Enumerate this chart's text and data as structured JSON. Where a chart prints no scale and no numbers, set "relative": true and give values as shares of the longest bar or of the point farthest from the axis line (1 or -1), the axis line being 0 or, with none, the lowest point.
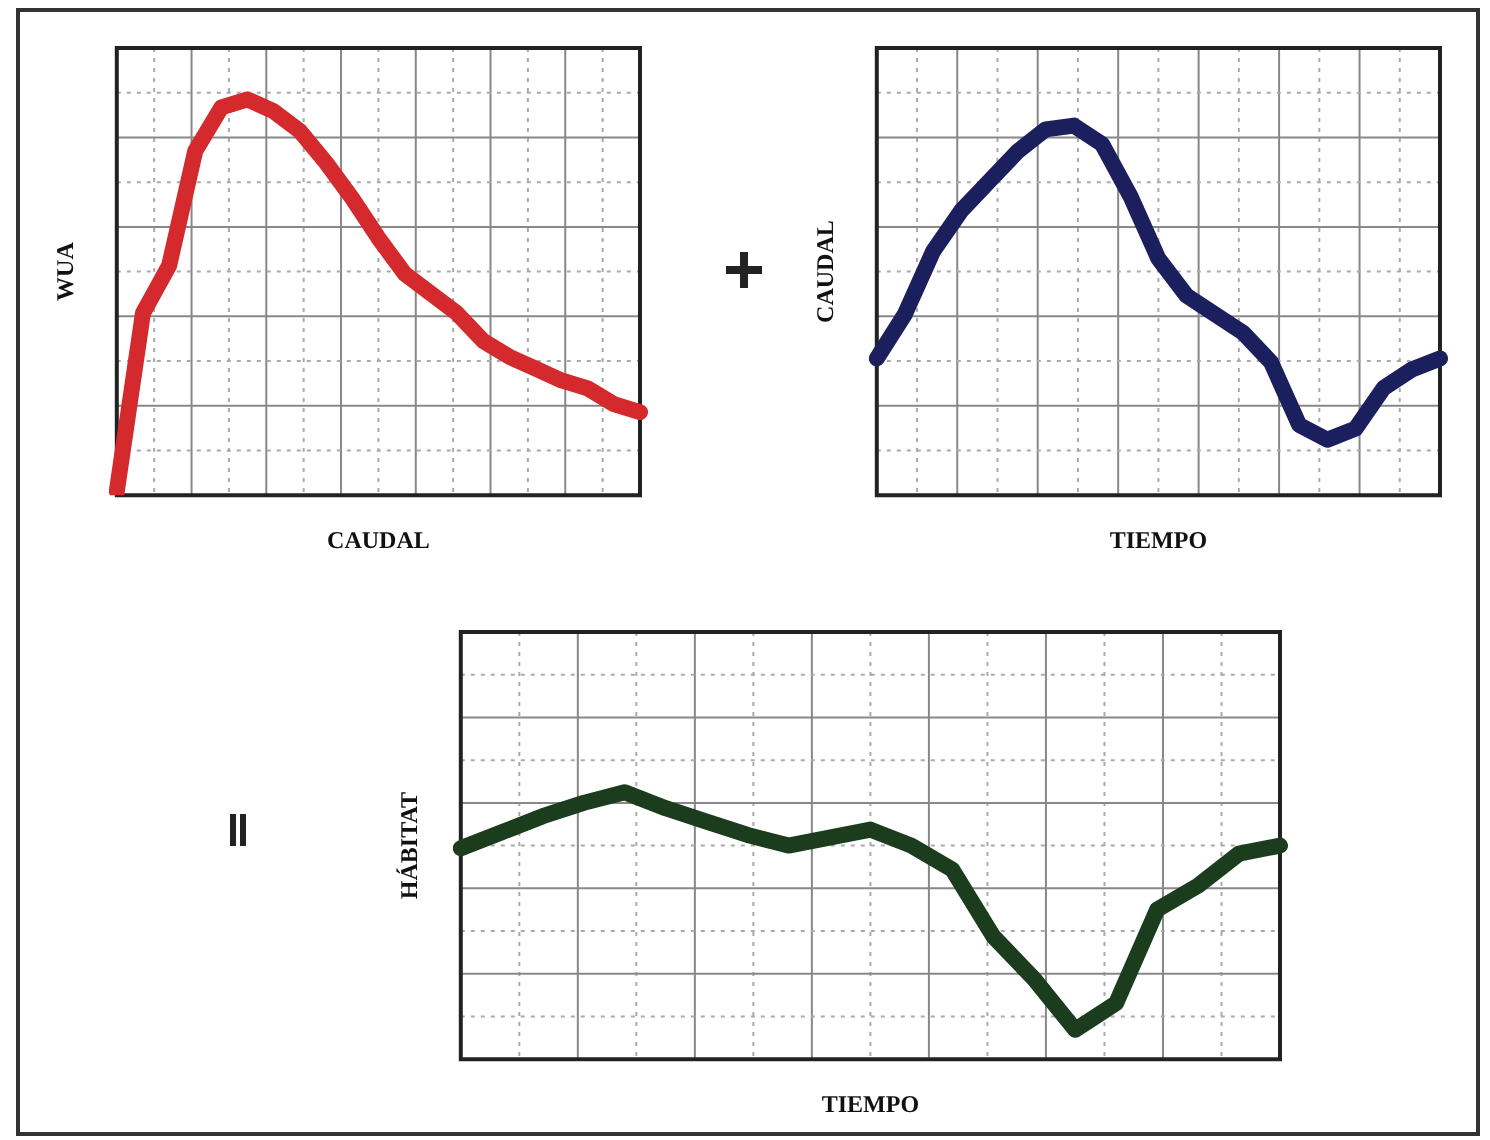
{
  "chart_data": [
    {
      "type": "line",
      "relative": true,
      "xlabel": "CAUDAL",
      "ylabel": "WUA",
      "grid": true,
      "marker": "none",
      "line_style": "solid",
      "categories": [
        null,
        null,
        null,
        null,
        null,
        null,
        null,
        null,
        null,
        null,
        null,
        null,
        null,
        null,
        null,
        null,
        null,
        null,
        null,
        null,
        null
      ],
      "series": [
        {
          "color": "#d42a2e",
          "values": [
            0.01,
            0.46,
            0.58,
            0.87,
            0.98,
            1,
            0.97,
            0.92,
            0.84,
            0.75,
            0.65,
            0.56,
            0.51,
            0.46,
            0.39,
            0.35,
            0.32,
            0.29,
            0.27,
            0.23,
            0.21
          ]
        }
      ]
    },
    {
      "type": "line",
      "relative": true,
      "xlabel": "TIEMPO",
      "ylabel": "CAUDAL",
      "grid": true,
      "marker": "none",
      "line_style": "solid",
      "categories": [
        null,
        null,
        null,
        null,
        null,
        null,
        null,
        null,
        null,
        null,
        null,
        null,
        null,
        null,
        null,
        null,
        null,
        null,
        null,
        null,
        null
      ],
      "series": [
        {
          "color": "#1c1f5e",
          "values": [
            0.37,
            0.49,
            0.66,
            0.77,
            0.85,
            0.93,
            0.99,
            1,
            0.95,
            0.81,
            0.64,
            0.54,
            0.49,
            0.44,
            0.36,
            0.19,
            0.15,
            0.18,
            0.29,
            0.34,
            0.37
          ]
        }
      ]
    },
    {
      "type": "line",
      "relative": true,
      "xlabel": "TIEMPO",
      "ylabel": "HÁBITAT",
      "grid": true,
      "marker": "none",
      "line_style": "solid",
      "categories": [
        null,
        null,
        null,
        null,
        null,
        null,
        null,
        null,
        null,
        null,
        null,
        null,
        null,
        null,
        null,
        null,
        null,
        null,
        null,
        null,
        null
      ],
      "series": [
        {
          "color": "#1b3d1e",
          "values": [
            0.79,
            0.85,
            0.91,
            0.96,
            1,
            0.94,
            0.89,
            0.84,
            0.8,
            0.83,
            0.86,
            0.8,
            0.71,
            0.46,
            0.3,
            0.11,
            0.21,
            0.56,
            0.65,
            0.77,
            0.8
          ]
        }
      ]
    }
  ]
}
